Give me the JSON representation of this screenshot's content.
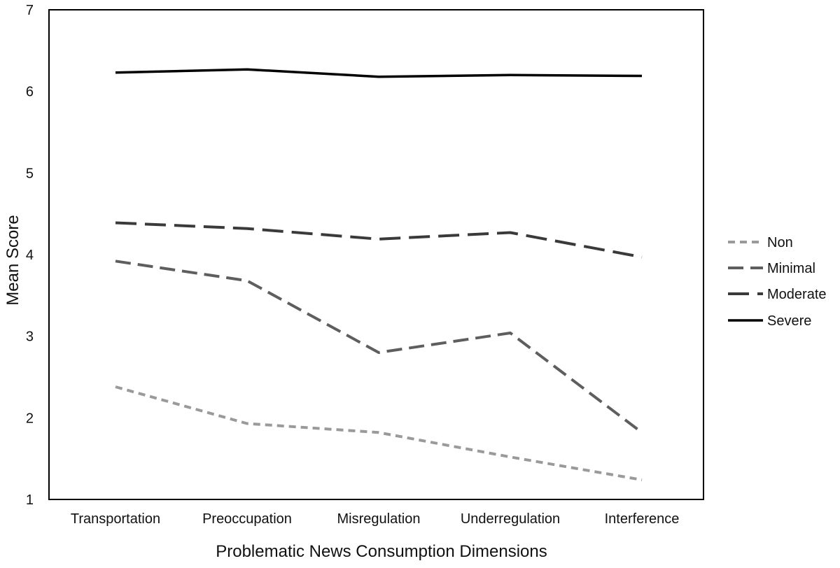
{
  "chart_data": {
    "type": "line",
    "title": "",
    "xlabel": "Problematic News Consumption Dimensions",
    "ylabel": "Mean Score",
    "categories": [
      "Transportation",
      "Preoccupation",
      "Misregulation",
      "Underregulation",
      "Interference"
    ],
    "ylim": [
      1,
      7
    ],
    "yticks": [
      1,
      2,
      3,
      4,
      5,
      6,
      7
    ],
    "grid": false,
    "legend_position": "right",
    "series": [
      {
        "name": "Non",
        "values": [
          2.38,
          1.93,
          1.82,
          1.52,
          1.24
        ],
        "color": "#9a9a9a",
        "dash": "short"
      },
      {
        "name": "Minimal",
        "values": [
          3.92,
          3.68,
          2.8,
          3.04,
          1.82
        ],
        "color": "#5e5e5e",
        "dash": "medium"
      },
      {
        "name": "Moderate",
        "values": [
          4.39,
          4.32,
          4.19,
          4.27,
          3.97
        ],
        "color": "#3a3a3a",
        "dash": "long"
      },
      {
        "name": "Severe",
        "values": [
          6.23,
          6.27,
          6.18,
          6.2,
          6.19
        ],
        "color": "#000000",
        "dash": "solid"
      }
    ]
  }
}
